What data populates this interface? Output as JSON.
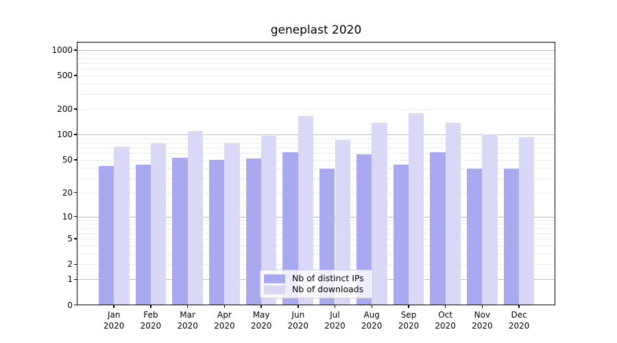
{
  "chart_data": {
    "type": "bar",
    "title": "geneplast 2020",
    "categories": [
      "Jan 2020",
      "Feb 2020",
      "Mar 2020",
      "Apr 2020",
      "May 2020",
      "Jun 2020",
      "Jul 2020",
      "Aug 2020",
      "Sep 2020",
      "Oct 2020",
      "Nov 2020",
      "Dec 2020"
    ],
    "series": [
      {
        "name": "Nb of distinct IPs",
        "color": "#a9a9f0",
        "values": [
          42,
          44,
          53,
          50,
          52,
          61,
          39,
          58,
          44,
          61,
          39,
          39
        ]
      },
      {
        "name": "Nb of downloads",
        "color": "#d9d9f7",
        "values": [
          72,
          78,
          110,
          78,
          97,
          168,
          86,
          137,
          181,
          137,
          100,
          94
        ]
      }
    ],
    "y_axis": {
      "scale": "log1p",
      "ticks": [
        0,
        1,
        2,
        5,
        10,
        20,
        50,
        100,
        200,
        500,
        1000
      ],
      "range": [
        0,
        1264
      ]
    },
    "x_axis": {
      "tick_label_lines": 2
    },
    "grid": {
      "minor_color": "#ececec",
      "major_color": "#b9b9b9",
      "major_lines_at": [
        1,
        10,
        100,
        1000
      ]
    },
    "legend": {
      "position": "lower-center"
    }
  }
}
